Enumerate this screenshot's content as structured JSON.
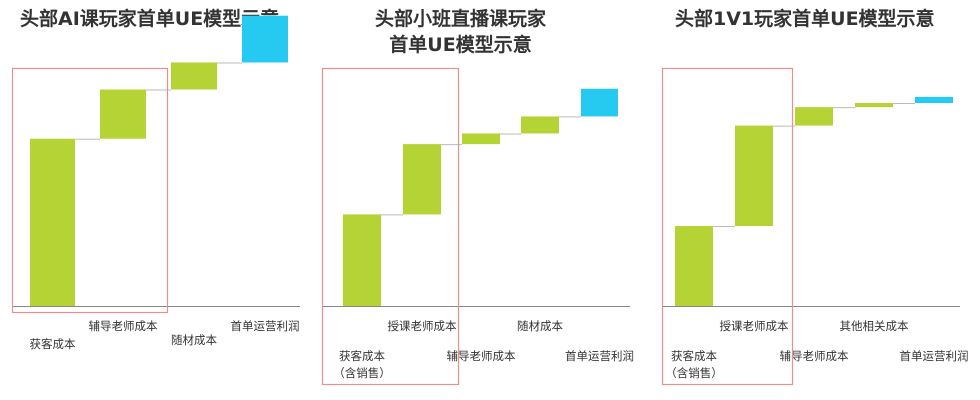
{
  "colors": {
    "cost": "#b5d334",
    "profit": "#26c9f0",
    "box": "#e8908f",
    "axis": "#888888",
    "connector": "#bbbbbb"
  },
  "chart_data": [
    {
      "type": "waterfall",
      "title": "头部AI课玩家首单UE模型示意",
      "categories": [
        "获客成本",
        "辅导老师成本",
        "随材成本",
        "首单运营利润"
      ],
      "values": [
        68,
        20,
        11,
        19
      ],
      "ylim": [
        0,
        100
      ],
      "highlight": [
        "获客成本",
        "辅导老师成本"
      ],
      "last_is_total": false
    },
    {
      "type": "waterfall",
      "title_lines": [
        "头部小班直播课玩家",
        "首单UE模型示意"
      ],
      "categories": [
        "获客成本\n（含销售）",
        "授课老师成本",
        "辅导老师成本",
        "随材成本",
        "首单运营利润"
      ],
      "values": [
        43,
        33,
        5,
        8,
        13
      ],
      "ylim": [
        0,
        100
      ],
      "highlight": [
        "获客成本\n（含销售）",
        "授课老师成本"
      ],
      "last_is_total": false
    },
    {
      "type": "waterfall",
      "title": "头部1V1玩家首单UE模型示意",
      "categories": [
        "获客成本\n（含销售）",
        "授课老师成本",
        "辅导老师成本",
        "其他相关成本",
        "首单运营利润"
      ],
      "values": [
        39,
        49,
        9,
        2,
        3
      ],
      "ylim": [
        0,
        100
      ],
      "highlight": [
        "获客成本\n（含销售）",
        "授课老师成本"
      ],
      "last_is_total": false
    }
  ]
}
